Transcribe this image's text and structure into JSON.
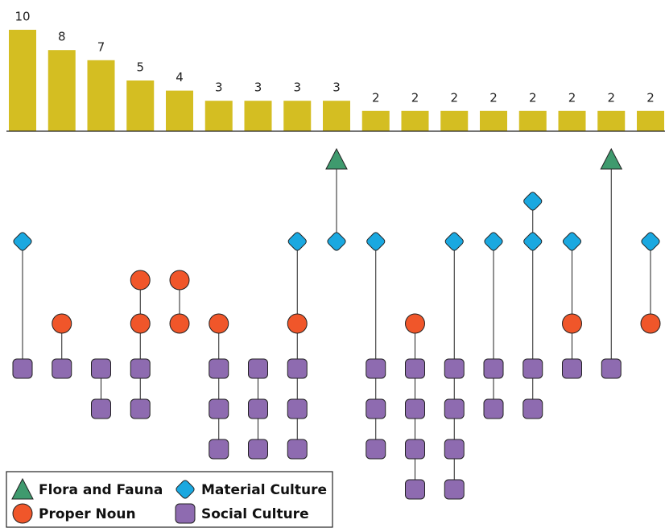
{
  "chart_data": {
    "type": "bar",
    "values": [
      10,
      8,
      7,
      5,
      4,
      3,
      3,
      3,
      3,
      2,
      2,
      2,
      2,
      2,
      2,
      2,
      2
    ],
    "color": "#d4be22",
    "ylim": [
      0,
      10
    ],
    "columns": [
      [
        "diamond",
        "square"
      ],
      [
        "circle",
        "square"
      ],
      [
        "square",
        "square"
      ],
      [
        "circle",
        "circle",
        "square",
        "square"
      ],
      [
        "circle",
        "circle"
      ],
      [
        "circle",
        "square",
        "square",
        "square"
      ],
      [
        "square",
        "square",
        "square"
      ],
      [
        "diamond",
        "circle",
        "square",
        "square",
        "square"
      ],
      [
        "triangle",
        "diamond"
      ],
      [
        "diamond",
        "square",
        "square",
        "square"
      ],
      [
        "circle",
        "square",
        "square",
        "square",
        "square"
      ],
      [
        "diamond",
        "square",
        "square",
        "square",
        "square"
      ],
      [
        "diamond",
        "square",
        "square"
      ],
      [
        "diamond",
        "diamond",
        "square",
        "square"
      ],
      [
        "diamond",
        "circle",
        "square"
      ],
      [
        "triangle",
        "square"
      ],
      [
        "diamond",
        "circle"
      ]
    ],
    "legend": [
      {
        "label": "Flora and Fauna",
        "shape": "triangle",
        "color": "#3f9a6e"
      },
      {
        "label": "Material Culture",
        "shape": "diamond",
        "color": "#1aa8e0"
      },
      {
        "label": "Proper Noun",
        "shape": "circle",
        "color": "#f0562a"
      },
      {
        "label": "Social Culture",
        "shape": "square",
        "color": "#8e6bb0"
      }
    ]
  }
}
